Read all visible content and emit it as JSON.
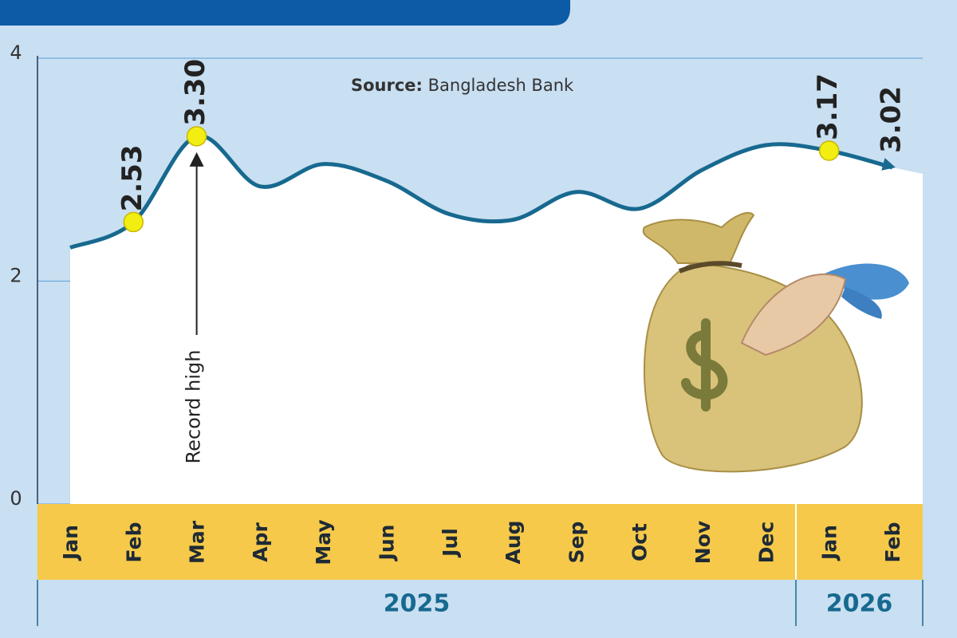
{
  "chart_data": {
    "type": "line",
    "source_label": "Source:",
    "source": "Bangladesh Bank",
    "annotation": "Record high",
    "groups": [
      {
        "label": "2025",
        "categories": [
          "Jan",
          "Feb",
          "Mar",
          "Apr",
          "May",
          "Jun",
          "Jul",
          "Aug",
          "Sep",
          "Oct",
          "Nov",
          "Dec"
        ]
      },
      {
        "label": "2026",
        "categories": [
          "Jan",
          "Feb"
        ]
      }
    ],
    "values": [
      2.3,
      2.53,
      3.3,
      2.85,
      3.05,
      2.9,
      2.6,
      2.55,
      2.8,
      2.65,
      3.0,
      3.22,
      3.17,
      3.02
    ],
    "value_labels": [
      null,
      "2.53",
      "3.30",
      null,
      null,
      null,
      null,
      null,
      null,
      null,
      null,
      null,
      "3.17",
      "3.02"
    ],
    "color": "#17698f",
    "marker_color": "#f2ee12",
    "ylim": [
      0,
      4
    ],
    "yticks": [
      0,
      2,
      4
    ],
    "grid": true
  }
}
